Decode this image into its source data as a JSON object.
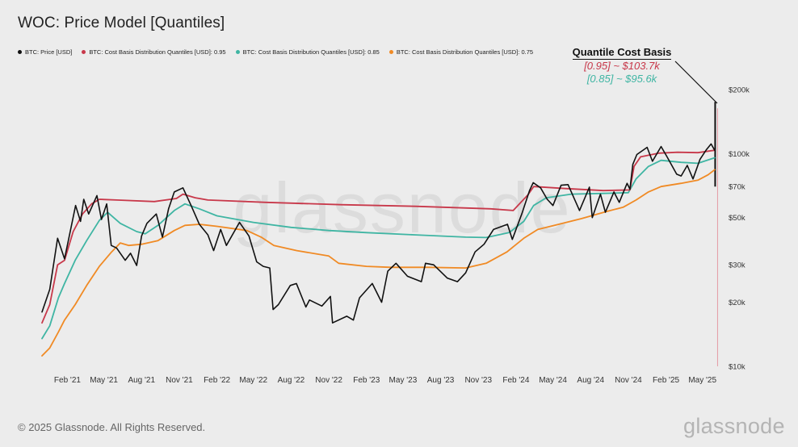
{
  "title": "WOC: Price Model [Quantiles]",
  "legend": [
    {
      "label": "BTC: Price [USD]",
      "color": "#111111"
    },
    {
      "label": "BTC: Cost Basis Distribution Quantiles [USD]: 0.95",
      "color": "#c8384a"
    },
    {
      "label": "BTC: Cost Basis Distribution Quantiles [USD]: 0.85",
      "color": "#3fb5a3"
    },
    {
      "label": "BTC: Cost Basis Distribution Quantiles [USD]: 0.75",
      "color": "#f08a24"
    }
  ],
  "annotation": {
    "title": "Quantile Cost Basis",
    "line1": "[0.95] ~ $103.7k",
    "line1_color": "#c8384a",
    "line2": "[0.85] ~ $95.6k",
    "line2_color": "#3fb5a3"
  },
  "footer": "© 2025 Glassnode. All Rights Reserved.",
  "brand": "glassnode",
  "watermark": "glassnode",
  "chart_data": {
    "type": "line",
    "y_scale": "log",
    "ylim": [
      10000,
      200000
    ],
    "x_range": [
      "2020-12-01",
      "2025-06-10"
    ],
    "x_ticks": [
      {
        "date": "2021-02-01",
        "label": "Feb '21"
      },
      {
        "date": "2021-05-01",
        "label": "May '21"
      },
      {
        "date": "2021-08-01",
        "label": "Aug '21"
      },
      {
        "date": "2021-11-01",
        "label": "Nov '21"
      },
      {
        "date": "2022-02-01",
        "label": "Feb '22"
      },
      {
        "date": "2022-05-01",
        "label": "May '22"
      },
      {
        "date": "2022-08-01",
        "label": "Aug '22"
      },
      {
        "date": "2022-11-01",
        "label": "Nov '22"
      },
      {
        "date": "2023-02-01",
        "label": "Feb '23"
      },
      {
        "date": "2023-05-01",
        "label": "May '23"
      },
      {
        "date": "2023-08-01",
        "label": "Aug '23"
      },
      {
        "date": "2023-11-01",
        "label": "Nov '23"
      },
      {
        "date": "2024-02-01",
        "label": "Feb '24"
      },
      {
        "date": "2024-05-01",
        "label": "May '24"
      },
      {
        "date": "2024-08-01",
        "label": "Aug '24"
      },
      {
        "date": "2024-11-01",
        "label": "Nov '24"
      },
      {
        "date": "2025-02-01",
        "label": "Feb '25"
      },
      {
        "date": "2025-05-01",
        "label": "May '25"
      }
    ],
    "y_ticks": [
      {
        "value": 10000,
        "label": "$10k"
      },
      {
        "value": 20000,
        "label": "$20k"
      },
      {
        "value": 30000,
        "label": "$30k"
      },
      {
        "value": 50000,
        "label": "$50k"
      },
      {
        "value": 70000,
        "label": "$70k"
      },
      {
        "value": 100000,
        "label": "$100k"
      },
      {
        "value": 200000,
        "label": "$200k"
      }
    ],
    "grid": false,
    "spike_band": {
      "date": "2025-06-01",
      "low": 70000,
      "high": 175000
    },
    "series": [
      {
        "name": "BTC: Price [USD]",
        "color": "#111111",
        "points": [
          [
            "2020-12-01",
            18000
          ],
          [
            "2020-12-20",
            23000
          ],
          [
            "2021-01-08",
            40000
          ],
          [
            "2021-01-25",
            32000
          ],
          [
            "2021-02-10",
            45000
          ],
          [
            "2021-02-21",
            57000
          ],
          [
            "2021-03-05",
            48000
          ],
          [
            "2021-03-13",
            61000
          ],
          [
            "2021-03-25",
            52000
          ],
          [
            "2021-04-14",
            63500
          ],
          [
            "2021-04-25",
            49000
          ],
          [
            "2021-05-08",
            58000
          ],
          [
            "2021-05-19",
            37000
          ],
          [
            "2021-06-01",
            36000
          ],
          [
            "2021-06-22",
            31500
          ],
          [
            "2021-07-05",
            34000
          ],
          [
            "2021-07-20",
            29800
          ],
          [
            "2021-08-01",
            41000
          ],
          [
            "2021-08-14",
            47000
          ],
          [
            "2021-09-06",
            52000
          ],
          [
            "2021-09-21",
            40500
          ],
          [
            "2021-10-06",
            55000
          ],
          [
            "2021-10-20",
            66000
          ],
          [
            "2021-11-10",
            69000
          ],
          [
            "2021-11-30",
            57000
          ],
          [
            "2021-12-20",
            46500
          ],
          [
            "2022-01-10",
            41500
          ],
          [
            "2022-01-24",
            35000
          ],
          [
            "2022-02-10",
            44000
          ],
          [
            "2022-02-24",
            37000
          ],
          [
            "2022-03-28",
            47500
          ],
          [
            "2022-04-20",
            41000
          ],
          [
            "2022-05-09",
            31000
          ],
          [
            "2022-05-25",
            29500
          ],
          [
            "2022-06-10",
            29000
          ],
          [
            "2022-06-18",
            18500
          ],
          [
            "2022-07-01",
            19500
          ],
          [
            "2022-07-30",
            24000
          ],
          [
            "2022-08-14",
            24500
          ],
          [
            "2022-09-06",
            19000
          ],
          [
            "2022-09-15",
            20500
          ],
          [
            "2022-10-15",
            19200
          ],
          [
            "2022-11-05",
            21300
          ],
          [
            "2022-11-10",
            16000
          ],
          [
            "2022-12-15",
            17200
          ],
          [
            "2022-12-31",
            16500
          ],
          [
            "2023-01-15",
            21000
          ],
          [
            "2023-02-15",
            24500
          ],
          [
            "2023-03-10",
            20000
          ],
          [
            "2023-03-25",
            28000
          ],
          [
            "2023-04-14",
            30500
          ],
          [
            "2023-05-12",
            26500
          ],
          [
            "2023-06-15",
            25000
          ],
          [
            "2023-06-25",
            30500
          ],
          [
            "2023-07-15",
            30000
          ],
          [
            "2023-08-17",
            26000
          ],
          [
            "2023-09-11",
            25000
          ],
          [
            "2023-10-01",
            27500
          ],
          [
            "2023-10-24",
            34500
          ],
          [
            "2023-11-15",
            37500
          ],
          [
            "2023-12-08",
            44000
          ],
          [
            "2024-01-11",
            46500
          ],
          [
            "2024-01-23",
            39500
          ],
          [
            "2024-02-15",
            52000
          ],
          [
            "2024-03-05",
            67000
          ],
          [
            "2024-03-14",
            73000
          ],
          [
            "2024-04-01",
            69000
          ],
          [
            "2024-04-17",
            61000
          ],
          [
            "2024-05-01",
            57000
          ],
          [
            "2024-05-21",
            71000
          ],
          [
            "2024-06-07",
            71500
          ],
          [
            "2024-07-05",
            54000
          ],
          [
            "2024-07-29",
            69500
          ],
          [
            "2024-08-05",
            50000
          ],
          [
            "2024-08-25",
            64500
          ],
          [
            "2024-09-06",
            53000
          ],
          [
            "2024-09-27",
            66000
          ],
          [
            "2024-10-10",
            59000
          ],
          [
            "2024-10-29",
            72500
          ],
          [
            "2024-11-05",
            68000
          ],
          [
            "2024-11-12",
            89000
          ],
          [
            "2024-11-22",
            99000
          ],
          [
            "2024-12-17",
            107000
          ],
          [
            "2024-12-30",
            92000
          ],
          [
            "2025-01-20",
            108000
          ],
          [
            "2025-02-03",
            97000
          ],
          [
            "2025-02-27",
            80000
          ],
          [
            "2025-03-10",
            78500
          ],
          [
            "2025-03-25",
            88000
          ],
          [
            "2025-04-08",
            76000
          ],
          [
            "2025-04-25",
            94000
          ],
          [
            "2025-05-10",
            104000
          ],
          [
            "2025-05-22",
            111000
          ],
          [
            "2025-05-31",
            103500
          ]
        ]
      },
      {
        "name": "BTC: Cost Basis Distribution Quantiles [USD]: 0.95",
        "color": "#c8384a",
        "points": [
          [
            "2020-12-01",
            16000
          ],
          [
            "2020-12-20",
            19500
          ],
          [
            "2021-01-08",
            30000
          ],
          [
            "2021-01-25",
            31500
          ],
          [
            "2021-02-15",
            43000
          ],
          [
            "2021-03-10",
            52000
          ],
          [
            "2021-04-01",
            58000
          ],
          [
            "2021-04-20",
            61000
          ],
          [
            "2021-06-01",
            60500
          ],
          [
            "2021-09-01",
            59500
          ],
          [
            "2021-10-25",
            61500
          ],
          [
            "2021-11-10",
            64500
          ],
          [
            "2021-12-10",
            62000
          ],
          [
            "2022-01-10",
            60500
          ],
          [
            "2022-06-01",
            59000
          ],
          [
            "2022-12-01",
            57500
          ],
          [
            "2023-06-01",
            56500
          ],
          [
            "2023-12-01",
            55000
          ],
          [
            "2024-01-25",
            54000
          ],
          [
            "2024-03-01",
            64000
          ],
          [
            "2024-03-15",
            70000
          ],
          [
            "2024-06-01",
            68500
          ],
          [
            "2024-09-01",
            67000
          ],
          [
            "2024-11-05",
            67500
          ],
          [
            "2024-11-15",
            87000
          ],
          [
            "2024-12-01",
            96500
          ],
          [
            "2025-01-15",
            100500
          ],
          [
            "2025-03-01",
            101500
          ],
          [
            "2025-04-20",
            101000
          ],
          [
            "2025-05-31",
            103700
          ]
        ]
      },
      {
        "name": "BTC: Cost Basis Distribution Quantiles [USD]: 0.85",
        "color": "#3fb5a3",
        "points": [
          [
            "2020-12-01",
            13500
          ],
          [
            "2020-12-20",
            15500
          ],
          [
            "2021-01-10",
            21000
          ],
          [
            "2021-01-25",
            24500
          ],
          [
            "2021-02-20",
            31500
          ],
          [
            "2021-03-20",
            39000
          ],
          [
            "2021-04-20",
            48500
          ],
          [
            "2021-05-10",
            53000
          ],
          [
            "2021-06-10",
            47000
          ],
          [
            "2021-07-20",
            43000
          ],
          [
            "2021-08-10",
            42000
          ],
          [
            "2021-09-10",
            46000
          ],
          [
            "2021-10-20",
            54000
          ],
          [
            "2021-11-15",
            58000
          ],
          [
            "2021-12-20",
            55000
          ],
          [
            "2022-02-01",
            51000
          ],
          [
            "2022-05-01",
            47500
          ],
          [
            "2022-08-01",
            45000
          ],
          [
            "2022-11-01",
            43500
          ],
          [
            "2023-02-01",
            42500
          ],
          [
            "2023-06-01",
            41500
          ],
          [
            "2023-10-01",
            40500
          ],
          [
            "2023-11-20",
            40300
          ],
          [
            "2024-01-15",
            42500
          ],
          [
            "2024-02-20",
            48000
          ],
          [
            "2024-03-15",
            57000
          ],
          [
            "2024-04-15",
            62000
          ],
          [
            "2024-06-15",
            64500
          ],
          [
            "2024-09-01",
            65000
          ],
          [
            "2024-11-01",
            65500
          ],
          [
            "2024-11-20",
            76000
          ],
          [
            "2024-12-20",
            87000
          ],
          [
            "2025-01-20",
            93000
          ],
          [
            "2025-03-10",
            91000
          ],
          [
            "2025-04-20",
            90000
          ],
          [
            "2025-05-31",
            95600
          ]
        ]
      },
      {
        "name": "BTC: Cost Basis Distribution Quantiles [USD]: 0.75",
        "color": "#f08a24",
        "points": [
          [
            "2020-12-01",
            11200
          ],
          [
            "2020-12-20",
            12200
          ],
          [
            "2021-01-10",
            14500
          ],
          [
            "2021-01-25",
            16500
          ],
          [
            "2021-02-20",
            19500
          ],
          [
            "2021-03-20",
            24000
          ],
          [
            "2021-04-20",
            29500
          ],
          [
            "2021-05-20",
            34500
          ],
          [
            "2021-06-10",
            38000
          ],
          [
            "2021-07-01",
            37000
          ],
          [
            "2021-08-01",
            37500
          ],
          [
            "2021-09-10",
            39000
          ],
          [
            "2021-10-20",
            43500
          ],
          [
            "2021-11-15",
            46000
          ],
          [
            "2021-12-20",
            46500
          ],
          [
            "2022-02-01",
            45500
          ],
          [
            "2022-04-15",
            43500
          ],
          [
            "2022-05-20",
            40500
          ],
          [
            "2022-06-20",
            37000
          ],
          [
            "2022-08-15",
            35000
          ],
          [
            "2022-11-01",
            33000
          ],
          [
            "2022-11-25",
            30500
          ],
          [
            "2023-02-01",
            29500
          ],
          [
            "2023-04-01",
            29200
          ],
          [
            "2023-07-01",
            29200
          ],
          [
            "2023-10-01",
            29000
          ],
          [
            "2023-11-20",
            30500
          ],
          [
            "2024-01-10",
            34500
          ],
          [
            "2024-02-20",
            40000
          ],
          [
            "2024-03-25",
            44000
          ],
          [
            "2024-05-15",
            46500
          ],
          [
            "2024-07-10",
            49500
          ],
          [
            "2024-09-10",
            53500
          ],
          [
            "2024-10-20",
            56000
          ],
          [
            "2024-11-20",
            60500
          ],
          [
            "2024-12-20",
            66000
          ],
          [
            "2025-01-20",
            70000
          ],
          [
            "2025-03-10",
            72500
          ],
          [
            "2025-04-20",
            75000
          ],
          [
            "2025-05-15",
            79500
          ],
          [
            "2025-05-31",
            84000
          ]
        ]
      }
    ]
  }
}
